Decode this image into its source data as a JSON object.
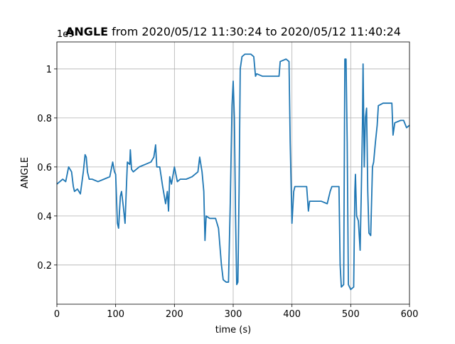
{
  "chart_data": {
    "type": "line",
    "title": {
      "bold": "ANGLE",
      "text": "from 2020/05/12 11:30:24 to 2020/05/12 11:40:24"
    },
    "xlabel": "time (s)",
    "ylabel": "ANGLE",
    "y_offset_label": "1e9",
    "xlim": [
      0,
      600
    ],
    "xticks": [
      0,
      100,
      200,
      300,
      400,
      500,
      600
    ],
    "ylim": [
      0.04,
      1.11
    ],
    "yticks": [
      0.2,
      0.4,
      0.6,
      0.8,
      1.0
    ],
    "grid": true,
    "series": [
      {
        "name": "ANGLE",
        "color": "#1f77b4",
        "x": [
          0,
          5,
          10,
          15,
          20,
          25,
          28,
          30,
          35,
          40,
          45,
          48,
          50,
          52,
          55,
          60,
          70,
          80,
          90,
          95,
          98,
          100,
          103,
          105,
          108,
          110,
          113,
          116,
          118,
          120,
          124,
          125,
          127,
          130,
          140,
          150,
          160,
          165,
          168,
          170,
          175,
          180,
          185,
          188,
          190,
          192,
          195,
          200,
          205,
          210,
          220,
          230,
          240,
          243,
          247,
          250,
          252,
          254,
          260,
          270,
          275,
          280,
          283,
          288,
          292,
          295,
          298,
          300,
          302,
          304,
          306,
          308,
          310,
          312,
          315,
          320,
          330,
          335,
          338,
          340,
          350,
          360,
          370,
          378,
          380,
          390,
          395,
          397,
          400,
          403,
          405,
          415,
          425,
          428,
          430,
          440,
          450,
          460,
          465,
          468,
          475,
          480,
          482,
          484,
          488,
          490,
          492,
          494,
          496,
          500,
          505,
          507,
          508,
          510,
          513,
          516,
          518,
          520,
          521,
          523,
          525,
          527,
          529,
          531,
          534,
          537,
          539,
          542,
          545,
          547,
          555,
          565,
          570,
          572,
          575,
          585,
          590,
          595,
          600
        ],
        "values": [
          0.53,
          0.54,
          0.55,
          0.54,
          0.6,
          0.58,
          0.52,
          0.5,
          0.51,
          0.49,
          0.58,
          0.65,
          0.64,
          0.58,
          0.55,
          0.55,
          0.54,
          0.55,
          0.56,
          0.62,
          0.58,
          0.57,
          0.37,
          0.35,
          0.48,
          0.5,
          0.44,
          0.37,
          0.5,
          0.62,
          0.61,
          0.67,
          0.59,
          0.58,
          0.6,
          0.61,
          0.62,
          0.64,
          0.69,
          0.6,
          0.6,
          0.52,
          0.45,
          0.5,
          0.42,
          0.56,
          0.53,
          0.6,
          0.54,
          0.55,
          0.55,
          0.56,
          0.58,
          0.64,
          0.58,
          0.5,
          0.3,
          0.4,
          0.39,
          0.39,
          0.35,
          0.2,
          0.14,
          0.13,
          0.13,
          0.45,
          0.85,
          0.95,
          0.8,
          0.4,
          0.12,
          0.13,
          0.5,
          1.0,
          1.05,
          1.06,
          1.06,
          1.05,
          0.97,
          0.98,
          0.97,
          0.97,
          0.97,
          0.97,
          1.03,
          1.04,
          1.03,
          0.7,
          0.37,
          0.5,
          0.52,
          0.52,
          0.52,
          0.42,
          0.46,
          0.46,
          0.46,
          0.45,
          0.5,
          0.52,
          0.52,
          0.52,
          0.2,
          0.11,
          0.12,
          1.04,
          1.04,
          0.7,
          0.12,
          0.1,
          0.11,
          0.5,
          0.57,
          0.4,
          0.38,
          0.26,
          0.5,
          0.78,
          1.02,
          0.6,
          0.8,
          0.84,
          0.5,
          0.33,
          0.32,
          0.6,
          0.62,
          0.7,
          0.77,
          0.85,
          0.86,
          0.86,
          0.86,
          0.73,
          0.78,
          0.79,
          0.79,
          0.76,
          0.77
        ]
      }
    ]
  }
}
